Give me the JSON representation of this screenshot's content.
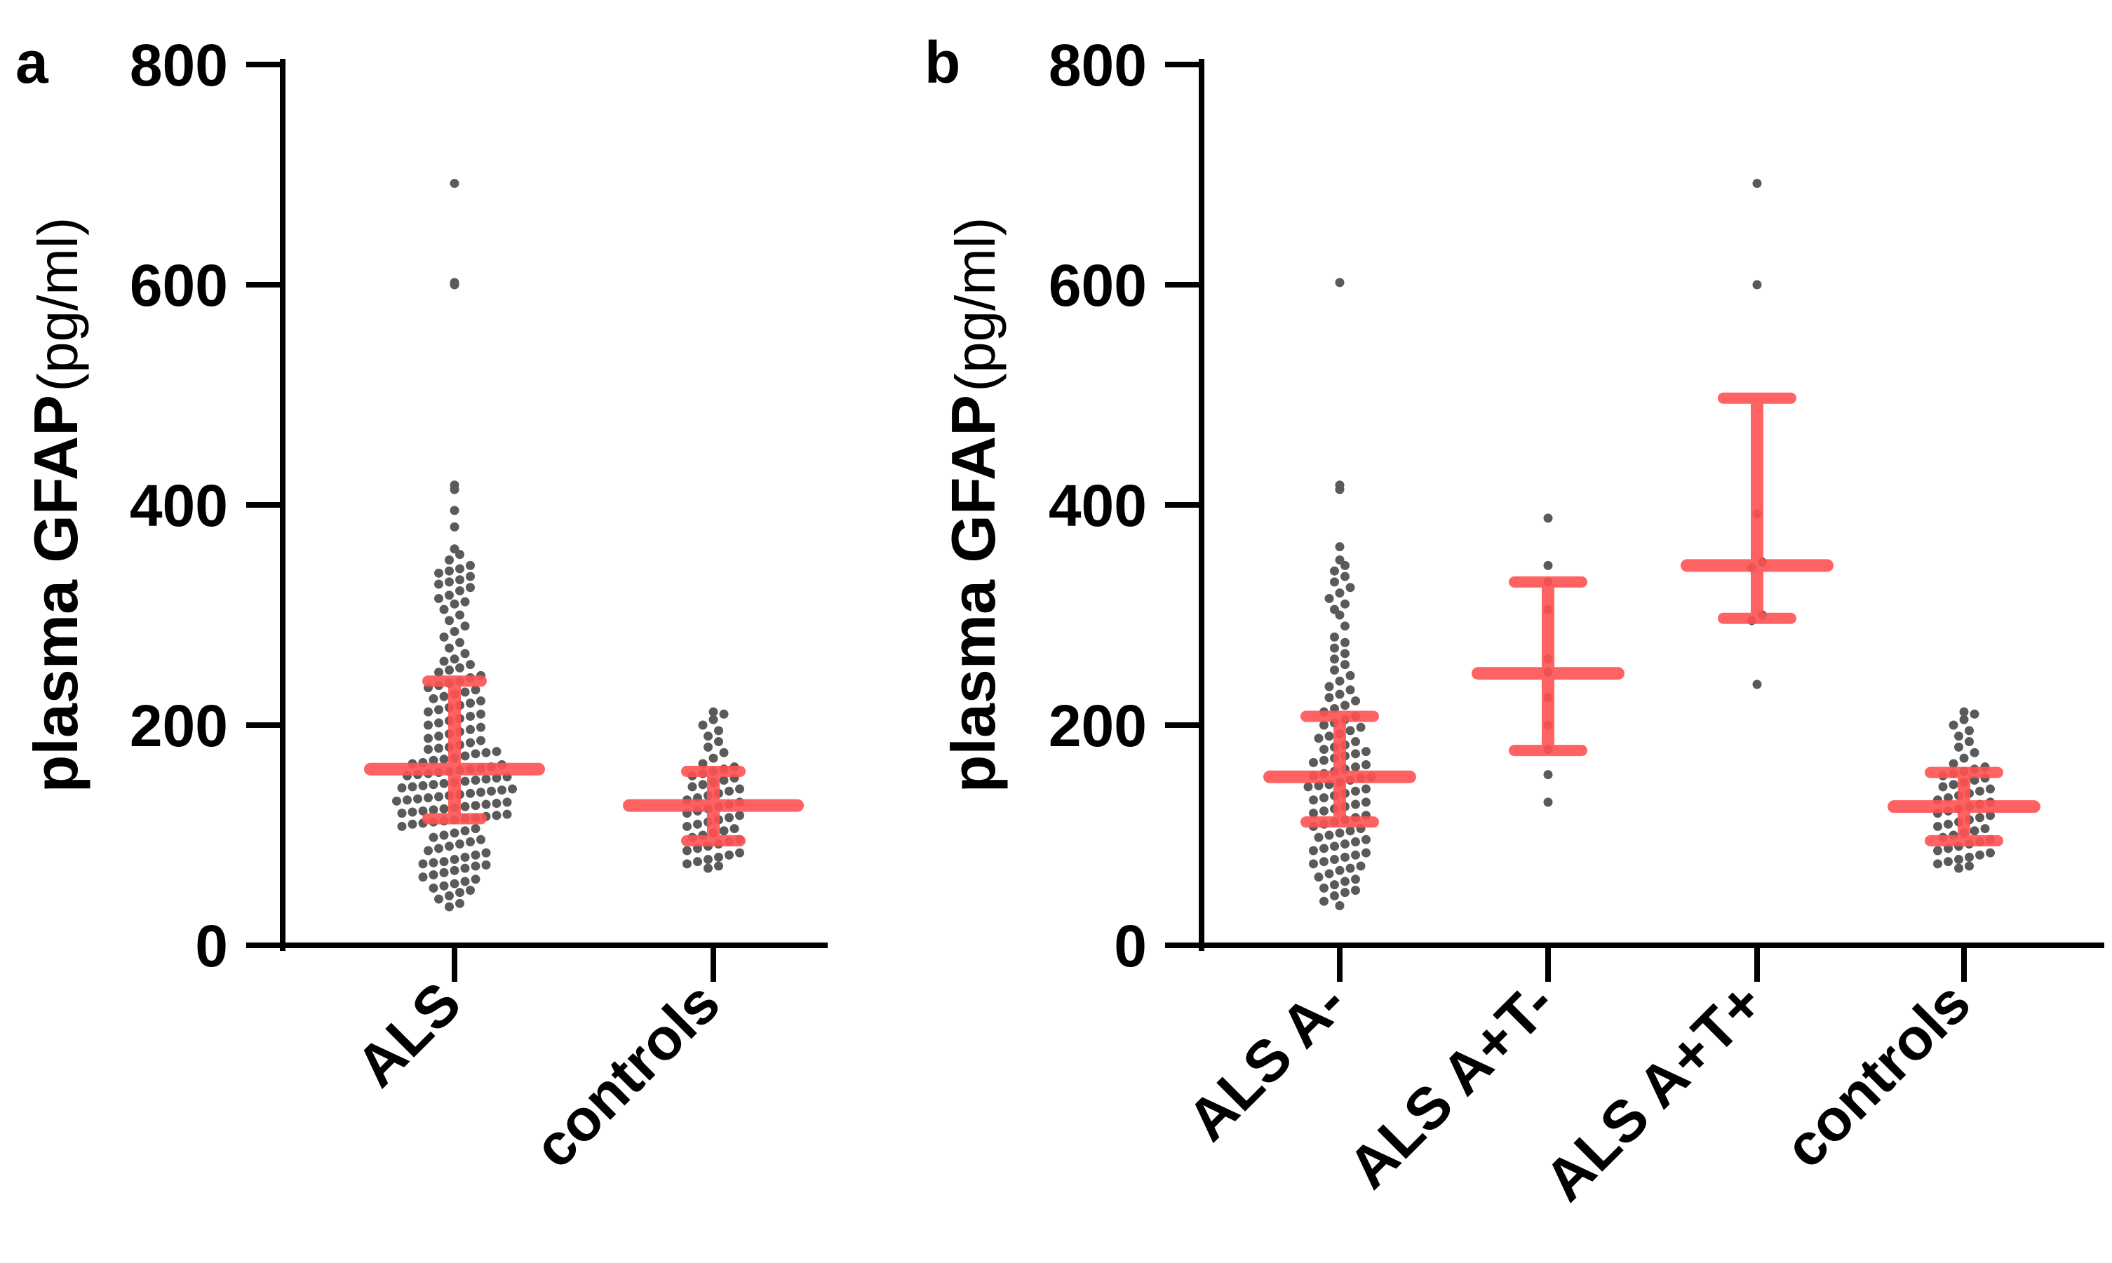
{
  "chart_data": [
    {
      "panel": "a",
      "type": "scatter",
      "ylabel_main": "plasma GFAP",
      "ylabel_unit": "(pg/ml)",
      "ylim": [
        0,
        800
      ],
      "yticks": [
        0,
        200,
        400,
        600,
        800
      ],
      "colors": {
        "points": "#5a5a5a",
        "summary": "#ff5252",
        "axis": "#000000"
      },
      "groups": [
        {
          "category": "ALS",
          "median": 160,
          "iqr": [
            115,
            240
          ],
          "values": [
            692,
            600,
            602,
            418,
            414,
            395,
            380,
            360,
            355,
            350,
            345,
            342,
            340,
            338,
            335,
            332,
            330,
            328,
            325,
            322,
            318,
            315,
            312,
            310,
            305,
            300,
            295,
            290,
            285,
            280,
            275,
            270,
            265,
            260,
            258,
            255,
            252,
            250,
            248,
            245,
            243,
            240,
            238,
            236,
            234,
            232,
            230,
            228,
            226,
            224,
            222,
            220,
            218,
            216,
            214,
            212,
            210,
            208,
            206,
            204,
            202,
            200,
            198,
            196,
            194,
            192,
            190,
            188,
            186,
            184,
            182,
            180,
            179,
            178,
            176,
            175,
            174,
            172,
            170,
            169,
            168,
            166,
            165,
            164,
            162,
            161,
            160,
            159,
            158,
            157,
            156,
            155,
            154,
            153,
            152,
            151,
            150,
            149,
            148,
            147,
            146,
            145,
            144,
            143,
            142,
            141,
            140,
            139,
            138,
            137,
            136,
            135,
            134,
            133,
            132,
            131,
            130,
            129,
            128,
            127,
            126,
            125,
            124,
            123,
            122,
            121,
            120,
            119,
            118,
            117,
            116,
            115,
            114,
            113,
            112,
            111,
            110,
            108,
            106,
            104,
            102,
            100,
            98,
            96,
            94,
            92,
            90,
            88,
            86,
            84,
            82,
            80,
            78,
            76,
            75,
            74,
            73,
            72,
            70,
            68,
            66,
            64,
            62,
            60,
            58,
            56,
            54,
            52,
            50,
            48,
            45,
            42,
            38,
            35
          ]
        },
        {
          "category": "controls",
          "median": 127,
          "iqr": [
            95,
            158
          ],
          "values": [
            212,
            210,
            205,
            200,
            195,
            190,
            185,
            180,
            175,
            170,
            165,
            162,
            160,
            158,
            156,
            154,
            152,
            150,
            148,
            146,
            144,
            142,
            140,
            138,
            136,
            134,
            132,
            130,
            128,
            126,
            124,
            122,
            120,
            118,
            116,
            114,
            112,
            110,
            108,
            106,
            104,
            102,
            100,
            98,
            96,
            94,
            92,
            90,
            88,
            86,
            84,
            82,
            80,
            78,
            76,
            74,
            72,
            70
          ]
        }
      ]
    },
    {
      "panel": "b",
      "type": "scatter",
      "ylabel_main": "plasma GFAP",
      "ylabel_unit": "(pg/ml)",
      "ylim": [
        0,
        800
      ],
      "yticks": [
        0,
        200,
        400,
        600,
        800
      ],
      "colors": {
        "points": "#5a5a5a",
        "summary": "#ff5252",
        "axis": "#000000"
      },
      "groups": [
        {
          "category": "ALS A-",
          "median": 153,
          "iqr": [
            112,
            208
          ],
          "values": [
            602,
            418,
            414,
            362,
            350,
            345,
            340,
            335,
            330,
            325,
            320,
            315,
            310,
            305,
            300,
            290,
            280,
            275,
            270,
            265,
            260,
            255,
            250,
            245,
            240,
            235,
            232,
            228,
            225,
            222,
            218,
            215,
            212,
            208,
            205,
            202,
            200,
            198,
            195,
            192,
            190,
            188,
            185,
            182,
            180,
            178,
            176,
            174,
            172,
            170,
            168,
            166,
            164,
            162,
            160,
            158,
            156,
            154,
            153,
            152,
            150,
            148,
            146,
            145,
            144,
            142,
            140,
            138,
            136,
            134,
            132,
            130,
            128,
            126,
            124,
            122,
            120,
            118,
            116,
            114,
            112,
            110,
            108,
            106,
            104,
            102,
            100,
            98,
            96,
            94,
            92,
            90,
            88,
            86,
            84,
            82,
            80,
            78,
            76,
            74,
            72,
            70,
            68,
            65,
            62,
            60,
            58,
            55,
            52,
            50,
            48,
            45,
            40,
            36
          ]
        },
        {
          "category": "ALS A+T-",
          "median": 247,
          "iqr": [
            177,
            330
          ],
          "values": [
            388,
            345,
            330,
            305,
            260,
            248,
            225,
            200,
            178,
            155,
            130
          ]
        },
        {
          "category": "ALS A+T+",
          "median": 345,
          "iqr": [
            297,
            497
          ],
          "values": [
            692,
            600,
            392,
            348,
            343,
            300,
            295,
            237
          ]
        },
        {
          "category": "controls",
          "median": 126,
          "iqr": [
            95,
            157
          ],
          "values": [
            212,
            210,
            205,
            200,
            195,
            190,
            185,
            180,
            175,
            170,
            165,
            162,
            160,
            158,
            156,
            154,
            152,
            150,
            148,
            146,
            144,
            142,
            140,
            138,
            136,
            134,
            132,
            130,
            128,
            126,
            124,
            122,
            120,
            118,
            116,
            114,
            112,
            110,
            108,
            106,
            104,
            102,
            100,
            98,
            96,
            94,
            92,
            90,
            88,
            86,
            84,
            82,
            80,
            78,
            76,
            74,
            72,
            70
          ]
        }
      ]
    }
  ]
}
